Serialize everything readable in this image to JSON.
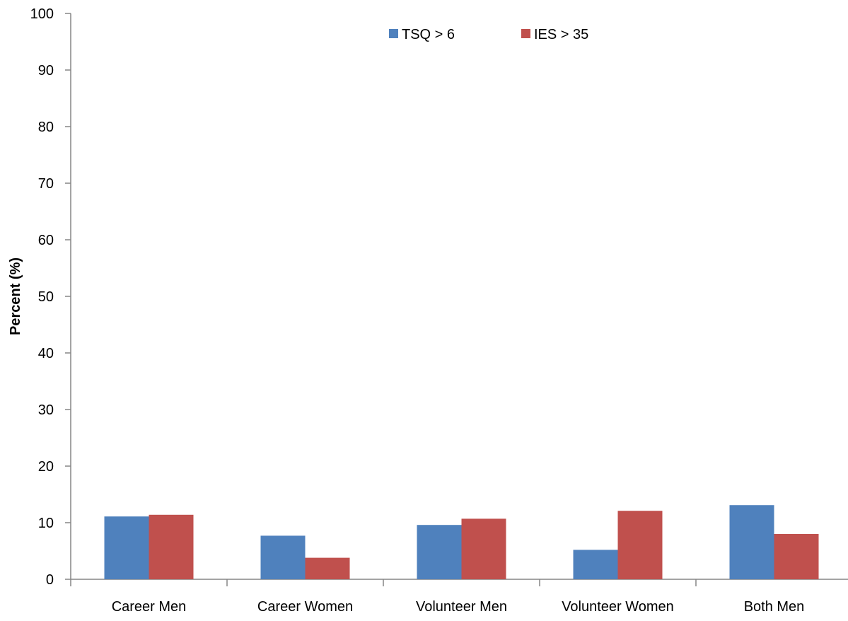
{
  "chart_data": {
    "type": "bar",
    "title": "",
    "xlabel": "",
    "ylabel": "Percent (%)",
    "ylim": [
      0,
      100
    ],
    "yticks": [
      0,
      10,
      20,
      30,
      40,
      50,
      60,
      70,
      80,
      90,
      100
    ],
    "grid": false,
    "legend_position": "top-center",
    "categories": [
      "Career Men",
      "Career Women",
      "Volunteer Men",
      "Volunteer Women",
      "Both Men"
    ],
    "series": [
      {
        "name": "TSQ > 6",
        "color": "#4F81BD",
        "values": [
          11.1,
          7.7,
          9.6,
          5.2,
          13.1
        ]
      },
      {
        "name": "IES > 35",
        "color": "#C0504D",
        "values": [
          11.4,
          3.8,
          10.7,
          12.1,
          8.0
        ]
      }
    ]
  }
}
